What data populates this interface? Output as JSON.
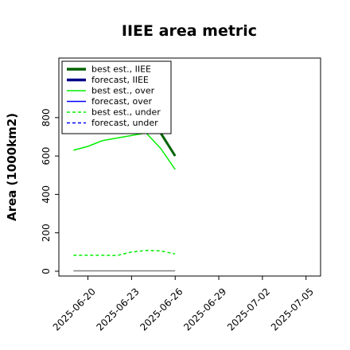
{
  "chart_data": {
    "type": "line",
    "title": "IIEE area metric",
    "xlabel": "",
    "ylabel": "Area (1000km2)",
    "x_type": "date",
    "xlim": [
      "2025-06-18",
      "2025-07-06"
    ],
    "ylim": [
      -25,
      1110
    ],
    "x_ticks": [
      "2025-06-20",
      "2025-06-23",
      "2025-06-26",
      "2025-06-29",
      "2025-07-02",
      "2025-07-05"
    ],
    "x_tick_colors": [
      "#000000",
      "#000000",
      "#2ca02c",
      "#000000",
      "#000000",
      "#000000"
    ],
    "y_ticks": [
      0,
      200,
      400,
      600,
      800
    ],
    "grid": false,
    "legend_position": "top-left",
    "series": [
      {
        "name": "best est., IIEE",
        "color": "#006400",
        "style": "solid",
        "points": [
          [
            "2025-06-24",
            760
          ],
          [
            "2025-06-25",
            720
          ],
          [
            "2025-06-26",
            600
          ]
        ]
      },
      {
        "name": "forecast, IIEE",
        "color": "#00008b",
        "style": "solid",
        "points": []
      },
      {
        "name": "best est., over",
        "color": "#00ee00",
        "style": "solid",
        "points": [
          [
            "2025-06-19",
            630
          ],
          [
            "2025-06-20",
            650
          ],
          [
            "2025-06-21",
            680
          ],
          [
            "2025-06-24",
            720
          ],
          [
            "2025-06-25",
            640
          ],
          [
            "2025-06-26",
            530
          ]
        ]
      },
      {
        "name": "forecast, over",
        "color": "#0000ff",
        "style": "solid",
        "points": []
      },
      {
        "name": "best est., under",
        "color": "#00ee00",
        "style": "dashed",
        "points": [
          [
            "2025-06-19",
            83
          ],
          [
            "2025-06-20",
            83
          ],
          [
            "2025-06-21",
            83
          ],
          [
            "2025-06-22",
            82
          ],
          [
            "2025-06-23",
            100
          ],
          [
            "2025-06-24",
            108
          ],
          [
            "2025-06-25",
            106
          ],
          [
            "2025-06-26",
            90
          ]
        ]
      },
      {
        "name": "forecast, under",
        "color": "#0000ff",
        "style": "dashed",
        "points": []
      },
      {
        "name": "",
        "color": "#808080",
        "style": "solid",
        "points": [
          [
            "2025-06-19",
            2
          ],
          [
            "2025-06-26",
            2
          ]
        ]
      }
    ]
  }
}
